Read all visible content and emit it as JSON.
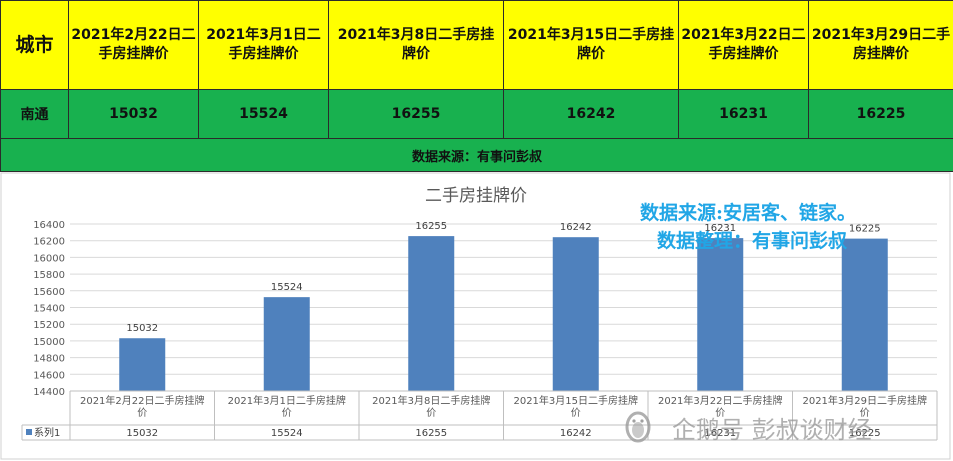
{
  "table": {
    "city_header": "城市",
    "col_headers": [
      "2021年2月22日二手房挂牌价",
      "2021年3月1日二手房挂牌价",
      "2021年3月8日二手房挂牌价",
      "2021年3月15日二手房挂牌价",
      "2021年3月22日二手房挂牌价",
      "2021年3月29日二手房挂牌价"
    ],
    "row_city": "南通",
    "row_values": [
      "15032",
      "15524",
      "16255",
      "16242",
      "16231",
      "16225"
    ],
    "source_note": "数据来源：有事问彭叔"
  },
  "watermark": {
    "line1": "数据来源:安居客、链家。",
    "line2": "数据整理：有事问彭叔",
    "brand": "企鹅号 彭叔谈财经",
    "brand_icon": "penguin-logo-icon"
  },
  "chart_data": {
    "type": "bar",
    "title": "二手房挂牌价",
    "categories": [
      "2021年2月22日二手房挂牌价",
      "2021年3月1日二手房挂牌价",
      "2021年3月8日二手房挂牌价",
      "2021年3月15日二手房挂牌价",
      "2021年3月22日二手房挂牌价",
      "2021年3月29日二手房挂牌价"
    ],
    "category_labels": [
      [
        "2021年2月22日二手房挂牌",
        "价"
      ],
      [
        "2021年3月1日二手房挂牌",
        "价"
      ],
      [
        "2021年3月8日二手房挂牌",
        "价"
      ],
      [
        "2021年3月15日二手房挂牌",
        "价"
      ],
      [
        "2021年3月22日二手房挂牌",
        "价"
      ],
      [
        "2021年3月29日二手房挂牌",
        "价"
      ]
    ],
    "series": [
      {
        "name": "系列1",
        "values": [
          15032,
          15524,
          16255,
          16242,
          16231,
          16225
        ]
      }
    ],
    "ylim": [
      14400,
      16400
    ],
    "yticks": [
      14400,
      14600,
      14800,
      15000,
      15200,
      15400,
      15600,
      15800,
      16000,
      16200,
      16400
    ],
    "grid": true,
    "data_labels": true,
    "data_table": true,
    "bar_color": "#4f81bd"
  }
}
